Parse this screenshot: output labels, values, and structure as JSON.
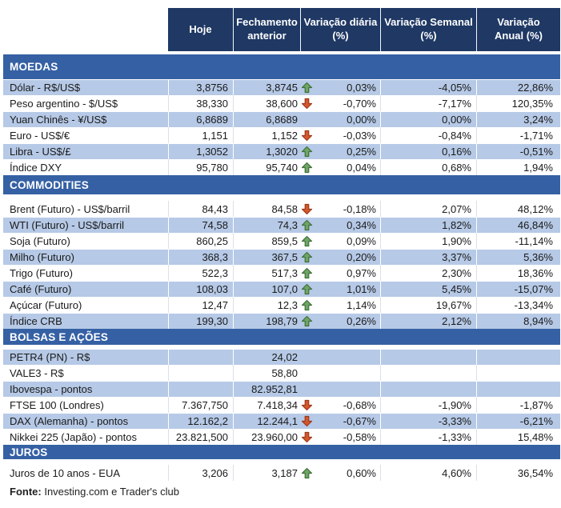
{
  "colors": {
    "header_bg": "#1F3864",
    "band_bg": "#3560A4",
    "shaded_row_bg": "#B6C9E6",
    "up_fill": "#6FA567",
    "up_stroke": "#3F7138",
    "down_fill": "#D4572C",
    "down_stroke": "#9E3A1B"
  },
  "table": {
    "columns": [
      "Hoje",
      "Fechamento\nanterior",
      "Variação diária\n(%)",
      "Variação Semanal\n(%)",
      "Variação\nAnual (%)"
    ],
    "sections": [
      {
        "title": "MOEDAS",
        "rows": [
          {
            "label": "Dólar - R$/US$",
            "hoje": "3,8756",
            "fechamento": "3,8745",
            "arrow": "up",
            "diaria": "0,03%",
            "semanal": "-4,05%",
            "anual": "22,86%"
          },
          {
            "label": "Peso argentino - $/US$",
            "hoje": "38,330",
            "fechamento": "38,600",
            "arrow": "down",
            "diaria": "-0,70%",
            "semanal": "-7,17%",
            "anual": "120,35%"
          },
          {
            "label": "Yuan Chinês - ¥/US$",
            "hoje": "6,8689",
            "fechamento": "6,8689",
            "arrow": "none",
            "diaria": "0,00%",
            "semanal": "0,00%",
            "anual": "3,24%"
          },
          {
            "label": "Euro - US$/€",
            "hoje": "1,151",
            "fechamento": "1,152",
            "arrow": "down",
            "diaria": "-0,03%",
            "semanal": "-0,84%",
            "anual": "-1,71%"
          },
          {
            "label": "Libra - US$/£",
            "hoje": "1,3052",
            "fechamento": "1,3020",
            "arrow": "up",
            "diaria": "0,25%",
            "semanal": "0,16%",
            "anual": "-0,51%"
          },
          {
            "label": "Índice DXY",
            "hoje": "95,780",
            "fechamento": "95,740",
            "arrow": "up",
            "diaria": "0,04%",
            "semanal": "0,68%",
            "anual": "1,94%"
          }
        ]
      },
      {
        "title": "COMMODITIES",
        "rows": [
          {
            "label": "Brent (Futuro) - US$/barril",
            "hoje": "84,43",
            "fechamento": "84,58",
            "arrow": "down",
            "diaria": "-0,18%",
            "semanal": "2,07%",
            "anual": "48,12%"
          },
          {
            "label": "WTI (Futuro) - US$/barril",
            "hoje": "74,58",
            "fechamento": "74,3",
            "arrow": "up",
            "diaria": "0,34%",
            "semanal": "1,82%",
            "anual": "46,84%"
          },
          {
            "label": "Soja (Futuro)",
            "hoje": "860,25",
            "fechamento": "859,5",
            "arrow": "up",
            "diaria": "0,09%",
            "semanal": "1,90%",
            "anual": "-11,14%"
          },
          {
            "label": "Milho (Futuro)",
            "hoje": "368,3",
            "fechamento": "367,5",
            "arrow": "up",
            "diaria": "0,20%",
            "semanal": "3,37%",
            "anual": "5,36%"
          },
          {
            "label": "Trigo (Futuro)",
            "hoje": "522,3",
            "fechamento": "517,3",
            "arrow": "up",
            "diaria": "0,97%",
            "semanal": "2,30%",
            "anual": "18,36%"
          },
          {
            "label": "Café (Futuro)",
            "hoje": "108,03",
            "fechamento": "107,0",
            "arrow": "up",
            "diaria": "1,01%",
            "semanal": "5,45%",
            "anual": "-15,07%"
          },
          {
            "label": "Açúcar (Futuro)",
            "hoje": "12,47",
            "fechamento": "12,3",
            "arrow": "up",
            "diaria": "1,14%",
            "semanal": "19,67%",
            "anual": "-13,34%"
          },
          {
            "label": "Índice CRB",
            "hoje": "199,30",
            "fechamento": "198,79",
            "arrow": "up",
            "diaria": "0,26%",
            "semanal": "2,12%",
            "anual": "8,94%"
          }
        ]
      },
      {
        "title": "BOLSAS E AÇÕES",
        "rows": [
          {
            "label": "PETR4 (PN) - R$",
            "hoje": "",
            "fechamento": "24,02",
            "arrow": "none",
            "diaria": "",
            "semanal": "",
            "anual": ""
          },
          {
            "label": "VALE3 - R$",
            "hoje": "",
            "fechamento": "58,80",
            "arrow": "none",
            "diaria": "",
            "semanal": "",
            "anual": ""
          },
          {
            "label": "Ibovespa - pontos",
            "hoje": "",
            "fechamento": "82.952,81",
            "arrow": "none",
            "diaria": "",
            "semanal": "",
            "anual": ""
          },
          {
            "label": "FTSE 100 (Londres)",
            "hoje": "7.367,750",
            "fechamento": "7.418,34",
            "arrow": "down",
            "diaria": "-0,68%",
            "semanal": "-1,90%",
            "anual": "-1,87%"
          },
          {
            "label": "DAX (Alemanha) - pontos",
            "hoje": "12.162,2",
            "fechamento": "12.244,1",
            "arrow": "down",
            "diaria": "-0,67%",
            "semanal": "-3,33%",
            "anual": "-6,21%"
          },
          {
            "label": "Nikkei 225 (Japão) - pontos",
            "hoje": "23.821,500",
            "fechamento": "23.960,00",
            "arrow": "down",
            "diaria": "-0,58%",
            "semanal": "-1,33%",
            "anual": "15,48%"
          }
        ]
      },
      {
        "title": "JUROS",
        "rows": [
          {
            "label": "Juros de 10 anos - EUA",
            "hoje": "3,206",
            "fechamento": "3,187",
            "arrow": "up",
            "diaria": "0,60%",
            "semanal": "4,60%",
            "anual": "36,54%"
          }
        ]
      }
    ]
  },
  "footer": {
    "label": "Fonte:",
    "text": " Investing.com e Trader's club"
  }
}
